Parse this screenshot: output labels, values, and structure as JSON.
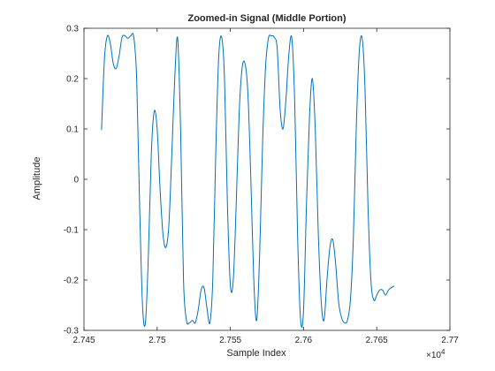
{
  "chart_data": {
    "type": "line",
    "title": "Zoomed-in Signal (Middle Portion)",
    "xlabel": "Sample Index",
    "ylabel": "Amplitude",
    "x_exponent_label": "×10",
    "x_exponent_power": "4",
    "xlim": [
      27450,
      27700
    ],
    "ylim": [
      -0.3,
      0.3
    ],
    "x_ticks": [
      27450,
      27500,
      27550,
      27600,
      27650,
      27700
    ],
    "x_tick_labels": [
      "2.745",
      "2.75",
      "2.755",
      "2.76",
      "2.765",
      "2.77"
    ],
    "y_ticks": [
      -0.3,
      -0.2,
      -0.1,
      0,
      0.1,
      0.2,
      0.3
    ],
    "y_tick_labels": [
      "-0.3",
      "-0.2",
      "-0.1",
      "0",
      "0.1",
      "0.2",
      "0.3"
    ],
    "grid": false,
    "line_color": "#0072BD",
    "series": [
      {
        "x": [
          27462,
          27464,
          27466,
          27468,
          27470,
          27472,
          27474,
          27476,
          27478,
          27480,
          27482,
          27484,
          27486,
          27488,
          27490,
          27492,
          27494,
          27496,
          27498,
          27500,
          27502,
          27504,
          27506,
          27508,
          27510,
          27512,
          27514,
          27516,
          27518,
          27520,
          27522,
          27524,
          27526,
          27528,
          27530,
          27532,
          27534,
          27536,
          27538,
          27540,
          27542,
          27544,
          27546,
          27548,
          27550,
          27552,
          27554,
          27556,
          27558,
          27560,
          27562,
          27564,
          27566,
          27568,
          27570,
          27572,
          27574,
          27576,
          27578,
          27580,
          27582,
          27584,
          27586,
          27588,
          27590,
          27592,
          27594,
          27596,
          27598,
          27600,
          27602,
          27604,
          27606,
          27608,
          27610,
          27612,
          27614,
          27616,
          27618,
          27620,
          27622,
          27624,
          27626,
          27628,
          27630,
          27632,
          27634,
          27636,
          27638,
          27640,
          27642,
          27644,
          27646,
          27648,
          27650,
          27652,
          27654,
          27656,
          27658,
          27660,
          27662
        ],
        "y": [
          0.098,
          0.24,
          0.285,
          0.27,
          0.23,
          0.22,
          0.245,
          0.282,
          0.285,
          0.28,
          0.285,
          0.283,
          0.2,
          -0.05,
          -0.25,
          -0.285,
          -0.15,
          0.05,
          0.135,
          0.1,
          -0.02,
          -0.11,
          -0.135,
          -0.09,
          0.05,
          0.2,
          0.28,
          0.1,
          -0.2,
          -0.28,
          -0.285,
          -0.28,
          -0.285,
          -0.26,
          -0.22,
          -0.215,
          -0.255,
          -0.285,
          -0.2,
          0.05,
          0.24,
          0.283,
          0.2,
          -0.05,
          -0.21,
          -0.2,
          -0.05,
          0.13,
          0.22,
          0.23,
          0.17,
          0.0,
          -0.2,
          -0.28,
          -0.15,
          0.07,
          0.22,
          0.28,
          0.285,
          0.282,
          0.26,
          0.14,
          0.1,
          0.16,
          0.25,
          0.28,
          0.15,
          -0.12,
          -0.28,
          -0.26,
          -0.05,
          0.12,
          0.2,
          0.1,
          -0.1,
          -0.24,
          -0.28,
          -0.2,
          -0.135,
          -0.12,
          -0.17,
          -0.245,
          -0.275,
          -0.285,
          -0.28,
          -0.24,
          -0.12,
          0.1,
          0.25,
          0.281,
          0.18,
          -0.05,
          -0.2,
          -0.24,
          -0.23,
          -0.22,
          -0.22,
          -0.23,
          -0.22,
          -0.215,
          -0.212
        ]
      }
    ]
  }
}
